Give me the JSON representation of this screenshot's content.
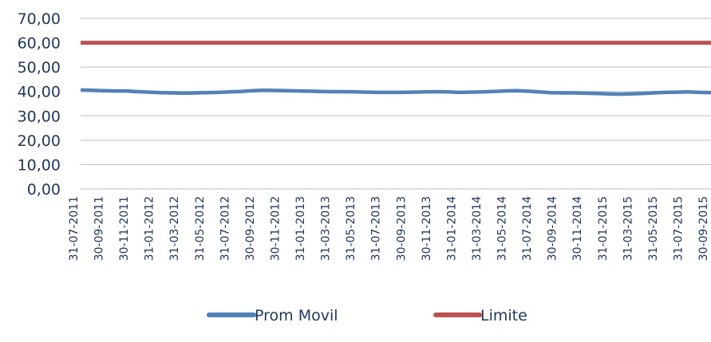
{
  "chart_data": {
    "type": "line",
    "ylim": [
      0,
      70
    ],
    "yticks": [
      "0,00",
      "10,00",
      "20,00",
      "30,00",
      "40,00",
      "50,00",
      "60,00",
      "70,00"
    ],
    "yticks_values": [
      0,
      10,
      20,
      30,
      40,
      50,
      60,
      70
    ],
    "x_tick_labels": [
      "31-07-2011",
      "30-09-2011",
      "30-11-2011",
      "31-01-2012",
      "31-03-2012",
      "31-05-2012",
      "31-07-2012",
      "30-09-2012",
      "30-11-2012",
      "31-01-2013",
      "31-03-2013",
      "31-05-2013",
      "31-07-2013",
      "30-09-2013",
      "30-11-2013",
      "31-01-2014",
      "31-03-2014",
      "31-05-2014",
      "31-07-2014",
      "30-09-2014",
      "30-11-2014",
      "31-01-2015",
      "31-03-2015",
      "31-05-2015",
      "31-07-2015",
      "30-09-2015"
    ],
    "grid": true,
    "legend_position": "bottom",
    "series": [
      {
        "name": "Prom Movil",
        "color": "#4f81bd",
        "values": [
          40.6,
          40.5,
          40.3,
          40.2,
          40.2,
          39.9,
          39.7,
          39.5,
          39.4,
          39.3,
          39.4,
          39.5,
          39.6,
          39.8,
          40.0,
          40.3,
          40.5,
          40.4,
          40.3,
          40.2,
          40.1,
          40.0,
          39.9,
          39.9,
          39.8,
          39.7,
          39.6,
          39.6,
          39.6,
          39.7,
          39.8,
          39.9,
          39.8,
          39.6,
          39.7,
          39.8,
          40.0,
          40.2,
          40.3,
          40.1,
          39.8,
          39.5,
          39.4,
          39.4,
          39.3,
          39.2,
          39.0,
          38.9,
          39.0,
          39.2,
          39.4,
          39.6,
          39.7,
          39.8,
          39.6,
          39.5
        ]
      },
      {
        "name": "Limite",
        "color": "#c0504d",
        "values": [
          60,
          60
        ]
      }
    ]
  }
}
